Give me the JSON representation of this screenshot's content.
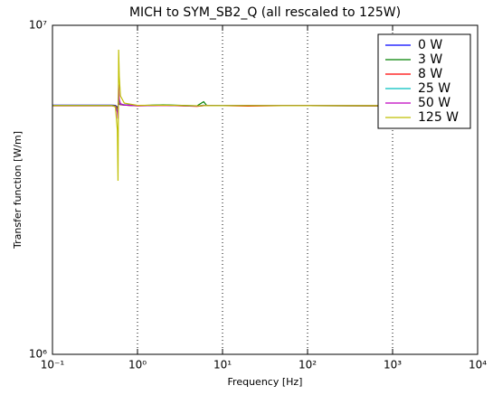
{
  "chart_data": {
    "type": "line",
    "title": "MICH to SYM_SB2_Q (all rescaled to 125W)",
    "x_label": "Frequency [Hz]",
    "y_label": "Transfer function [W/m]",
    "x_scale": "log",
    "y_scale": "log",
    "grid": "x",
    "legend": "upper right",
    "xlim": [
      0.1,
      10000
    ],
    "ylim": [
      1000000,
      10000000
    ],
    "xticks": [
      {
        "value": 0.1,
        "label": "10⁻¹"
      },
      {
        "value": 1,
        "label": "10⁰"
      },
      {
        "value": 10,
        "label": "10¹"
      },
      {
        "value": 100,
        "label": "10²"
      },
      {
        "value": 1000,
        "label": "10³"
      },
      {
        "value": 10000,
        "label": "10⁴"
      }
    ],
    "yticks": [
      {
        "value": 1000000,
        "label": "10⁶"
      },
      {
        "value": 10000000,
        "label": "10⁷"
      }
    ],
    "x": [
      0.1,
      0.3,
      0.5,
      0.55,
      0.58,
      0.59,
      0.6,
      0.61,
      0.63,
      0.7,
      1,
      2,
      5,
      6,
      6.5,
      10,
      20,
      50,
      100,
      1000
    ],
    "series": [
      {
        "name": "0 W",
        "color": "#0000ff",
        "values": [
          5720000,
          5720000,
          5720000,
          5710000,
          5650000,
          5600000,
          5800000,
          5760000,
          5740000,
          5730000,
          5700000,
          5720000,
          5680000,
          5700000,
          5700000,
          5710000,
          5700000,
          5700000,
          5700000,
          5690000
        ]
      },
      {
        "name": "3 W",
        "color": "#008000",
        "values": [
          5710000,
          5710000,
          5710000,
          5700000,
          5620000,
          5550000,
          5900000,
          5780000,
          5740000,
          5720000,
          5700000,
          5730000,
          5690000,
          5860000,
          5710000,
          5710000,
          5700000,
          5700000,
          5700000,
          5690000
        ]
      },
      {
        "name": "8 W",
        "color": "#ff0000",
        "values": [
          5700000,
          5700000,
          5700000,
          5690000,
          5580000,
          5500000,
          6000000,
          5800000,
          5740000,
          5720000,
          5690000,
          5710000,
          5670000,
          5700000,
          5700000,
          5700000,
          5680000,
          5700000,
          5700000,
          5690000
        ]
      },
      {
        "name": "25 W",
        "color": "#00bfbf",
        "values": [
          5700000,
          5700000,
          5700000,
          5680000,
          5520000,
          5400000,
          6200000,
          5850000,
          5760000,
          5720000,
          5700000,
          5720000,
          5680000,
          5720000,
          5700000,
          5710000,
          5700000,
          5700000,
          5700000,
          5700000
        ]
      },
      {
        "name": "50 W",
        "color": "#bf00bf",
        "values": [
          5690000,
          5690000,
          5690000,
          5670000,
          5450000,
          5200000,
          6600000,
          5950000,
          5780000,
          5720000,
          5700000,
          5710000,
          5680000,
          5710000,
          5700000,
          5700000,
          5700000,
          5700000,
          5700000,
          5700000
        ]
      },
      {
        "name": "125 W",
        "color": "#bfbf00",
        "values": [
          5700000,
          5700000,
          5700000,
          5650000,
          4800000,
          3370000,
          8430000,
          7000000,
          6100000,
          5800000,
          5710000,
          5720000,
          5690000,
          5700000,
          5700000,
          5700000,
          5700000,
          5700000,
          5700000,
          5700000
        ]
      }
    ]
  }
}
